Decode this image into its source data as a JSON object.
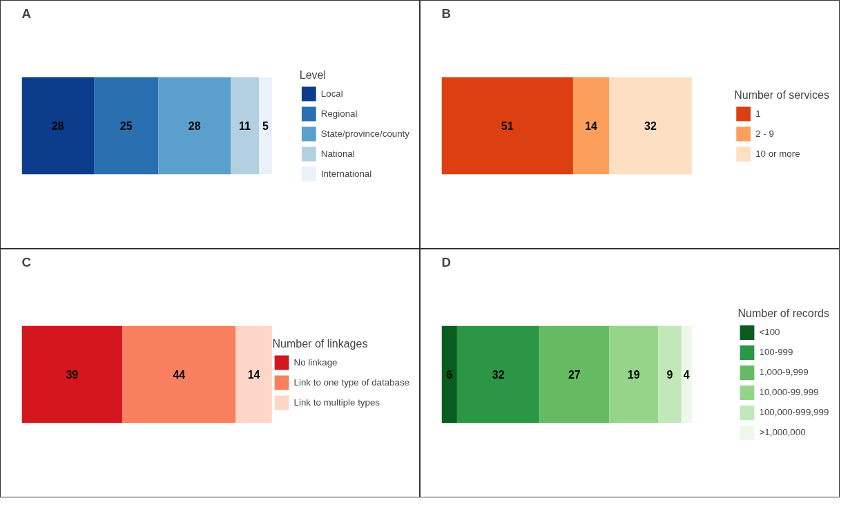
{
  "chart_data": [
    {
      "type": "bar",
      "title": "A",
      "stacked": true,
      "orientation": "horizontal",
      "categories": [
        null
      ],
      "data_labels": true,
      "legend": "right",
      "legend_title": "Level",
      "grid": false,
      "tick_labels": false,
      "series": [
        {
          "name": "Local",
          "color": "#0b3d8c",
          "values": [
            28
          ]
        },
        {
          "name": "Regional",
          "color": "#2a6fb0",
          "values": [
            25
          ]
        },
        {
          "name": "State/province/county",
          "color": "#5ba0cc",
          "values": [
            28
          ]
        },
        {
          "name": "National",
          "color": "#b3d0e3",
          "values": [
            11
          ]
        },
        {
          "name": "International",
          "color": "#eaf1fb",
          "values": [
            5
          ]
        }
      ]
    },
    {
      "type": "bar",
      "title": "B",
      "stacked": true,
      "orientation": "horizontal",
      "categories": [
        null
      ],
      "data_labels": true,
      "legend": "right",
      "legend_title": "Number of services",
      "grid": false,
      "tick_labels": false,
      "series": [
        {
          "name": "1",
          "color": "#dd4010",
          "values": [
            51
          ]
        },
        {
          "name": "2 - 9",
          "color": "#fc9f5c",
          "values": [
            14
          ]
        },
        {
          "name": "10 or more",
          "color": "#fddfc2",
          "values": [
            32
          ]
        }
      ]
    },
    {
      "type": "bar",
      "title": "C",
      "stacked": true,
      "orientation": "horizontal",
      "categories": [
        null
      ],
      "data_labels": true,
      "legend": "right",
      "legend_title": "Number of linkages",
      "grid": false,
      "tick_labels": false,
      "series": [
        {
          "name": "No linkage",
          "color": "#d4171f",
          "values": [
            39
          ]
        },
        {
          "name": "Link to one type of database",
          "color": "#f9805f",
          "values": [
            44
          ]
        },
        {
          "name": "Link to multiple types",
          "color": "#fdd6c8",
          "values": [
            14
          ]
        }
      ]
    },
    {
      "type": "bar",
      "title": "D",
      "stacked": true,
      "orientation": "horizontal",
      "categories": [
        null
      ],
      "data_labels": true,
      "legend": "right",
      "legend_title": "Number of records",
      "grid": false,
      "tick_labels": false,
      "series": [
        {
          "name": "<100",
          "color": "#0b5b21",
          "values": [
            6
          ]
        },
        {
          "name": "100-999",
          "color": "#2b9646",
          "values": [
            32
          ]
        },
        {
          "name": "1,000-9,999",
          "color": "#66bb62",
          "values": [
            27
          ]
        },
        {
          "name": "10,000-99,999",
          "color": "#96d48a",
          "values": [
            19
          ]
        },
        {
          "name": "100,000-999,999",
          "color": "#c2e7b9",
          "values": [
            9
          ]
        },
        {
          "name": ">1,000,000",
          "color": "#edf8e9",
          "values": [
            4
          ]
        }
      ]
    }
  ]
}
